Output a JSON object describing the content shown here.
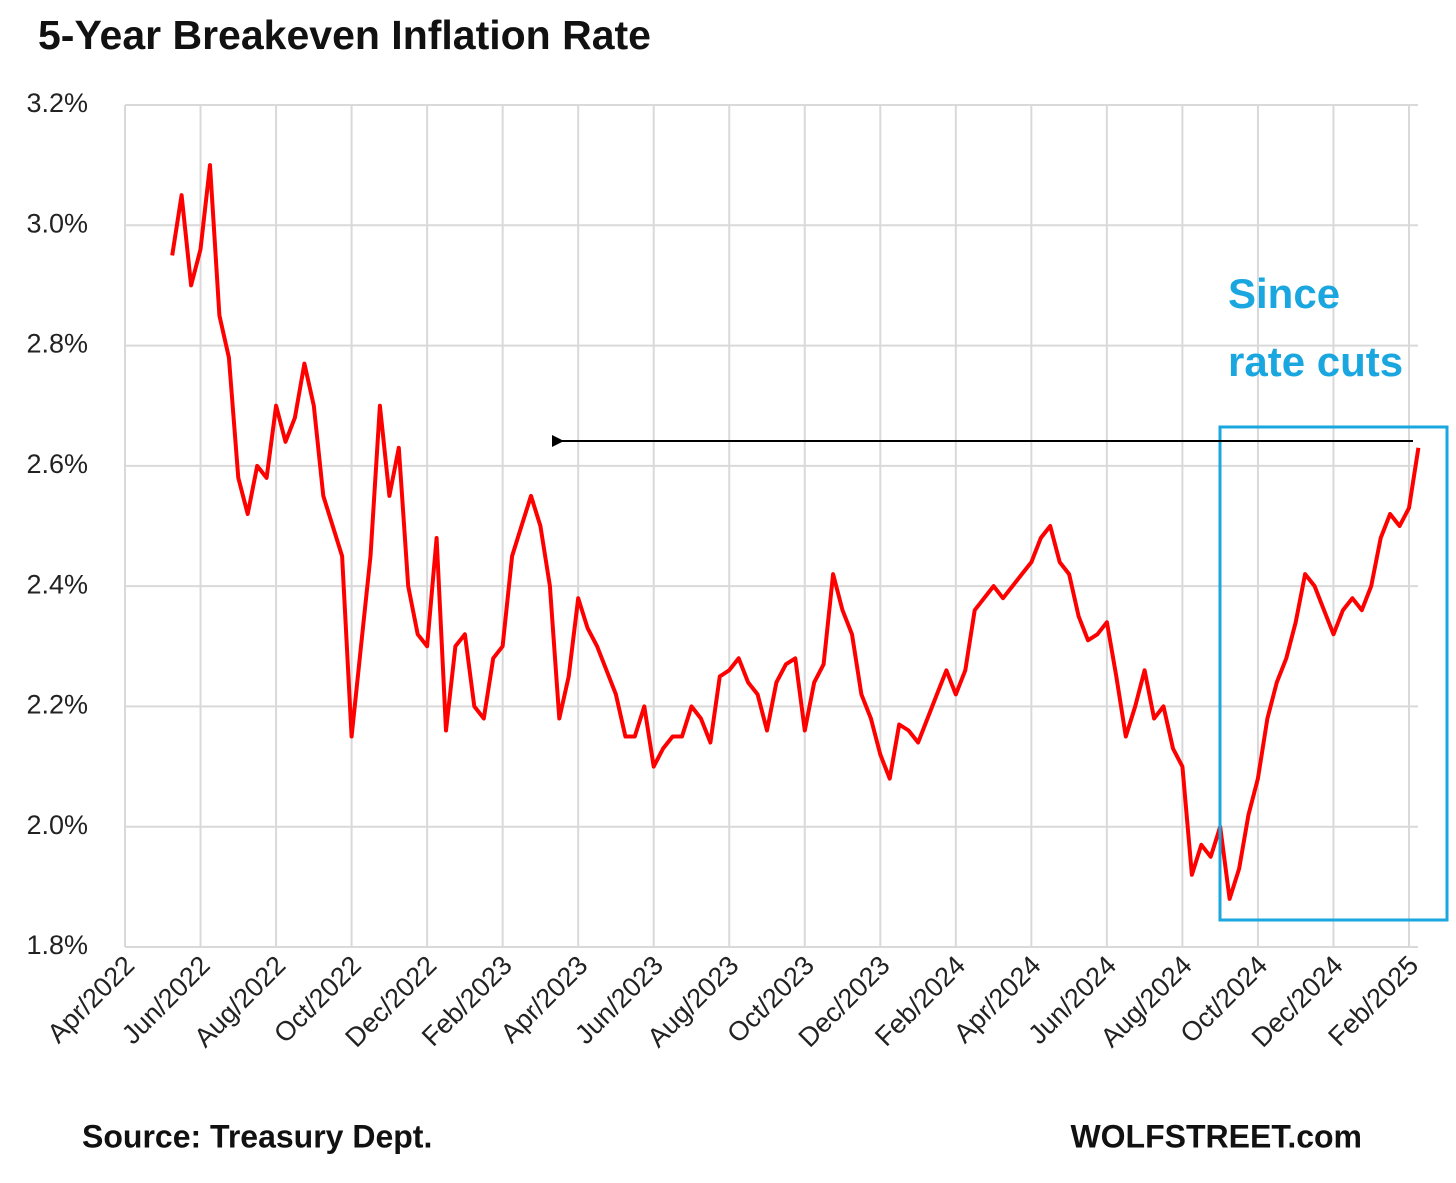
{
  "chart_data": {
    "type": "line",
    "title": "5-Year Breakeven Inflation Rate",
    "source": "Source: Treasury Dept.",
    "credit": "WOLFSTREET.com",
    "annotation": [
      "Since",
      "rate cuts"
    ],
    "annotation_color": "#1aa7e0",
    "grid": true,
    "categories": [
      "Apr/2022",
      null,
      null,
      null,
      null,
      null,
      null,
      null,
      "Jun/2022",
      null,
      null,
      null,
      null,
      null,
      null,
      null,
      "Aug/2022",
      null,
      null,
      null,
      null,
      null,
      null,
      null,
      "Oct/2022",
      null,
      null,
      null,
      null,
      null,
      null,
      null,
      "Dec/2022",
      null,
      null,
      null,
      null,
      null,
      null,
      null,
      "Feb/2023",
      null,
      null,
      null,
      null,
      null,
      null,
      null,
      "Apr/2023",
      null,
      null,
      null,
      null,
      null,
      null,
      null,
      "Jun/2023",
      null,
      null,
      null,
      null,
      null,
      null,
      null,
      "Aug/2023",
      null,
      null,
      null,
      null,
      null,
      null,
      null,
      "Oct/2023",
      null,
      null,
      null,
      null,
      null,
      null,
      null,
      "Dec/2023",
      null,
      null,
      null,
      null,
      null,
      null,
      null,
      "Feb/2024",
      null,
      null,
      null,
      null,
      null,
      null,
      null,
      "Apr/2024",
      null,
      null,
      null,
      null,
      null,
      null,
      null,
      "Jun/2024",
      null,
      null,
      null,
      null,
      null,
      null,
      null,
      "Aug/2024",
      null,
      null,
      null,
      null,
      null,
      null,
      null,
      "Oct/2024",
      null,
      null,
      null,
      null,
      null,
      null,
      null,
      "Dec/2024",
      null,
      null,
      null,
      null,
      null,
      null,
      null,
      "Feb/2025",
      null
    ],
    "series": [
      {
        "name": "5-Year Breakeven Inflation Rate",
        "color": "#ff0000",
        "values": [
          null,
          null,
          null,
          null,
          null,
          2.95,
          3.05,
          2.9,
          2.96,
          3.1,
          2.85,
          2.78,
          2.58,
          2.52,
          2.6,
          2.58,
          2.7,
          2.64,
          2.68,
          2.77,
          2.7,
          2.55,
          2.5,
          2.45,
          2.15,
          2.3,
          2.45,
          2.7,
          2.55,
          2.63,
          2.4,
          2.32,
          2.3,
          2.48,
          2.16,
          2.3,
          2.32,
          2.2,
          2.18,
          2.28,
          2.3,
          2.45,
          2.5,
          2.55,
          2.5,
          2.4,
          2.18,
          2.25,
          2.38,
          2.33,
          2.3,
          2.26,
          2.22,
          2.15,
          2.15,
          2.2,
          2.1,
          2.13,
          2.15,
          2.15,
          2.2,
          2.18,
          2.14,
          2.25,
          2.26,
          2.28,
          2.24,
          2.22,
          2.16,
          2.24,
          2.27,
          2.28,
          2.16,
          2.24,
          2.27,
          2.42,
          2.36,
          2.32,
          2.22,
          2.18,
          2.12,
          2.08,
          2.17,
          2.16,
          2.14,
          2.18,
          2.22,
          2.26,
          2.22,
          2.26,
          2.36,
          2.38,
          2.4,
          2.38,
          2.4,
          2.42,
          2.44,
          2.48,
          2.5,
          2.44,
          2.42,
          2.35,
          2.31,
          2.32,
          2.34,
          2.25,
          2.15,
          2.2,
          2.26,
          2.18,
          2.2,
          2.13,
          2.1,
          1.92,
          1.97,
          1.95,
          2.0,
          1.88,
          1.93,
          2.02,
          2.08,
          2.18,
          2.24,
          2.28,
          2.34,
          2.42,
          2.4,
          2.36,
          2.32,
          2.36,
          2.38,
          2.36,
          2.4,
          2.48,
          2.52,
          2.5,
          2.53,
          2.63
        ]
      }
    ],
    "ylim": [
      1.8,
      3.2
    ],
    "yticks": [
      {
        "value": 1.8,
        "label": "1.8%"
      },
      {
        "value": 2.0,
        "label": "2.0%"
      },
      {
        "value": 2.2,
        "label": "2.2%"
      },
      {
        "value": 2.4,
        "label": "2.4%"
      },
      {
        "value": 2.6,
        "label": "2.6%"
      },
      {
        "value": 2.8,
        "label": "2.8%"
      },
      {
        "value": 3.0,
        "label": "3.0%"
      },
      {
        "value": 3.2,
        "label": "3.2%"
      }
    ]
  }
}
